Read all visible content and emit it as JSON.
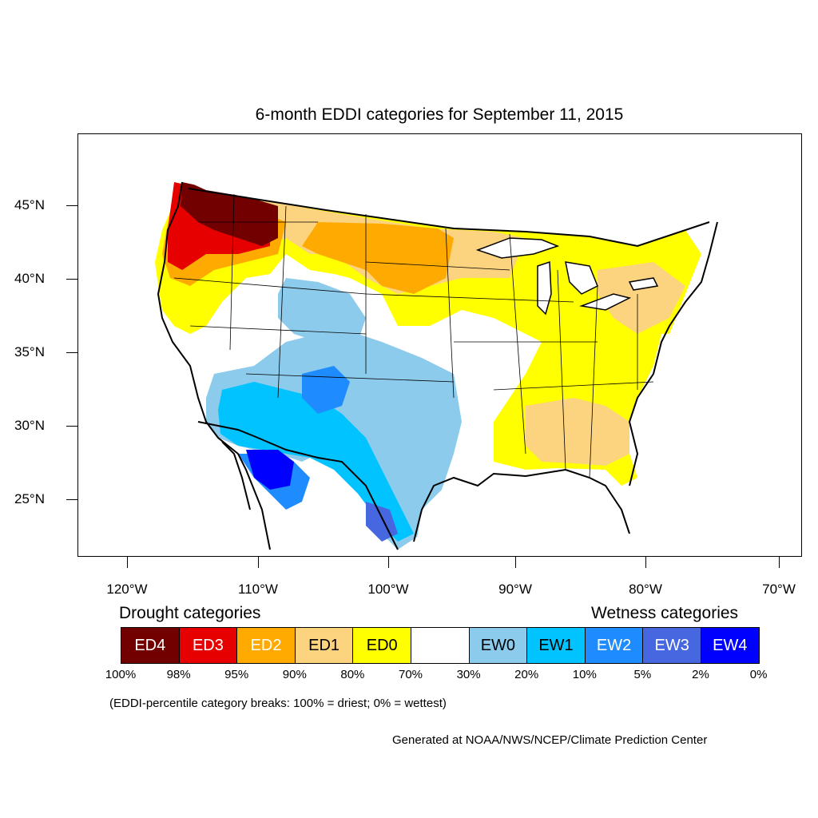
{
  "title": "6-month EDDI categories for September 11, 2015",
  "map": {
    "lat_labels": [
      "45°N",
      "40°N",
      "35°N",
      "30°N",
      "25°N"
    ],
    "lon_labels": [
      "120°W",
      "110°W",
      "100°W",
      "90°W",
      "80°W",
      "70°W"
    ]
  },
  "legend": {
    "drought_heading": "Drought categories",
    "wetness_heading": "Wetness categories",
    "categories": [
      {
        "label": "ED4",
        "color": "#730000",
        "text_color": "#ffffff"
      },
      {
        "label": "ED3",
        "color": "#e60000",
        "text_color": "#ffffff"
      },
      {
        "label": "ED2",
        "color": "#ffaa00",
        "text_color": "#ffffff"
      },
      {
        "label": "ED1",
        "color": "#fcd37f",
        "text_color": "#000000"
      },
      {
        "label": "ED0",
        "color": "#ffff00",
        "text_color": "#000000"
      },
      {
        "label": "",
        "color": "#ffffff",
        "text_color": "#000000"
      },
      {
        "label": "EW0",
        "color": "#8ccbeb",
        "text_color": "#000000"
      },
      {
        "label": "EW1",
        "color": "#00c3ff",
        "text_color": "#000000"
      },
      {
        "label": "EW2",
        "color": "#1e8cff",
        "text_color": "#ffffff"
      },
      {
        "label": "EW3",
        "color": "#4667e0",
        "text_color": "#ffffff"
      },
      {
        "label": "EW4",
        "color": "#0000ff",
        "text_color": "#ffffff"
      }
    ],
    "percent_breaks": [
      "100%",
      "98%",
      "95%",
      "90%",
      "80%",
      "70%",
      "30%",
      "20%",
      "10%",
      "5%",
      "2%",
      "0%"
    ],
    "note": "(EDDI-percentile category breaks: 100% = driest; 0% = wettest)"
  },
  "credit": "Generated at NOAA/NWS/NCEP/Climate Prediction Center"
}
